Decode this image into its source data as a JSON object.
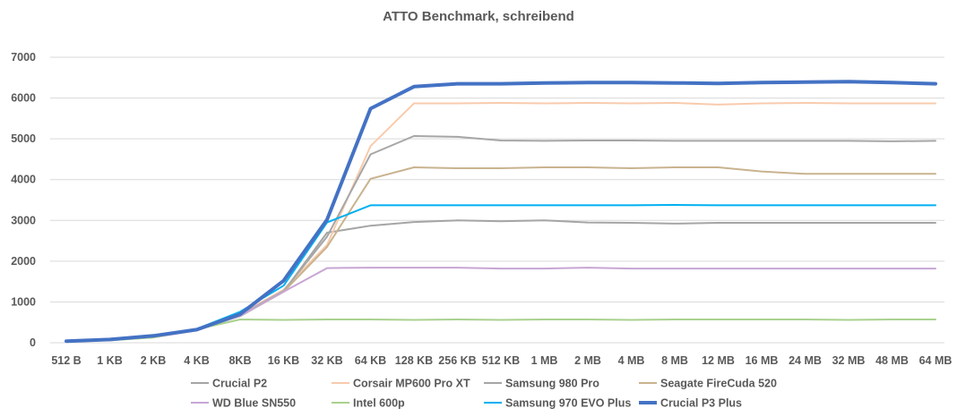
{
  "chart_data": {
    "type": "line",
    "title": "ATTO Benchmark, schreibend",
    "xlabel": "",
    "ylabel": "",
    "ylim": [
      0,
      7000
    ],
    "yticks": [
      0,
      1000,
      2000,
      3000,
      4000,
      5000,
      6000,
      7000
    ],
    "grid": true,
    "legend_position": "bottom",
    "categories": [
      "512 B",
      "1 KB",
      "2 KB",
      "4 KB",
      "8KB",
      "16 KB",
      "32 KB",
      "64 KB",
      "128 KB",
      "256 KB",
      "512 KB",
      "1 MB",
      "2 MB",
      "4 MB",
      "8 MB",
      "12 MB",
      "16 MB",
      "24 MB",
      "32 MB",
      "48 MB",
      "64 MB"
    ],
    "series": [
      {
        "name": "Crucial P2",
        "color": "#a5a5a5",
        "width": 2,
        "values": [
          40,
          80,
          160,
          330,
          650,
          1250,
          2700,
          2870,
          2960,
          3000,
          2980,
          3000,
          2950,
          2940,
          2920,
          2940,
          2940,
          2940,
          2940,
          2940,
          2940
        ]
      },
      {
        "name": "Corsair MP600 Pro XT",
        "color": "#f8cbad",
        "width": 2,
        "values": [
          40,
          80,
          170,
          340,
          700,
          1300,
          2400,
          4820,
          5870,
          5870,
          5880,
          5870,
          5880,
          5870,
          5880,
          5840,
          5870,
          5880,
          5870,
          5870,
          5870
        ]
      },
      {
        "name": "Samsung 980 Pro",
        "color": "#a6a6a6",
        "width": 2,
        "values": [
          40,
          80,
          160,
          330,
          680,
          1270,
          2600,
          4620,
          5070,
          5050,
          4960,
          4950,
          4960,
          4960,
          4950,
          4950,
          4950,
          4950,
          4950,
          4940,
          4950
        ]
      },
      {
        "name": "Seagate FireCuda 520",
        "color": "#c9b38f",
        "width": 2,
        "values": [
          40,
          80,
          160,
          330,
          660,
          1250,
          2350,
          4020,
          4300,
          4280,
          4280,
          4300,
          4300,
          4280,
          4300,
          4300,
          4200,
          4140,
          4140,
          4140,
          4140
        ]
      },
      {
        "name": "WD Blue SN550",
        "color": "#c7a6d4",
        "width": 2,
        "values": [
          40,
          60,
          130,
          300,
          660,
          1250,
          1830,
          1840,
          1840,
          1840,
          1820,
          1820,
          1840,
          1820,
          1820,
          1820,
          1820,
          1820,
          1820,
          1820,
          1820
        ]
      },
      {
        "name": "Intel 600p",
        "color": "#a9d18e",
        "width": 2,
        "values": [
          40,
          60,
          130,
          330,
          570,
          560,
          570,
          570,
          560,
          570,
          560,
          570,
          570,
          560,
          570,
          570,
          570,
          570,
          560,
          570,
          570
        ]
      },
      {
        "name": "Samsung 970 EVO Plus",
        "color": "#00b0f0",
        "width": 2,
        "values": [
          40,
          80,
          170,
          340,
          760,
          1400,
          2950,
          3370,
          3370,
          3370,
          3370,
          3370,
          3370,
          3370,
          3380,
          3370,
          3370,
          3370,
          3370,
          3370,
          3370
        ]
      },
      {
        "name": "Crucial P3 Plus",
        "color": "#4472c4",
        "width": 4,
        "values": [
          40,
          80,
          170,
          320,
          700,
          1520,
          3020,
          5740,
          6280,
          6350,
          6350,
          6370,
          6380,
          6380,
          6370,
          6360,
          6380,
          6390,
          6400,
          6380,
          6350
        ]
      }
    ]
  }
}
